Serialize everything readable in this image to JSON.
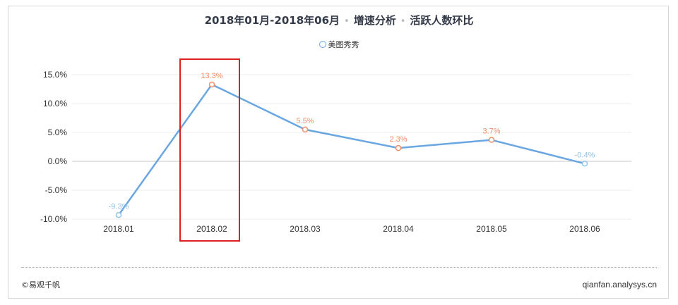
{
  "title": {
    "range": "2018年01月-2018年06月",
    "metric1": "增速分析",
    "metric2": "活跃人数环比",
    "separator": "•"
  },
  "footer": {
    "source": "©易观千帆",
    "website": "qianfan.analysys.cn"
  },
  "colors": {
    "line": "#6aa7e2",
    "positive_label": "#f08e6a",
    "negative_label": "#8ec3e6",
    "highlight_box": "#e0201f"
  },
  "chart_data": {
    "type": "line",
    "categories": [
      "2018.01",
      "2018.02",
      "2018.03",
      "2018.04",
      "2018.05",
      "2018.06"
    ],
    "series": [
      {
        "name": "美图秀秀",
        "values": [
          -9.3,
          13.3,
          5.5,
          2.3,
          3.7,
          -0.4
        ],
        "labels": [
          "-9.3%",
          "13.3%",
          "5.5%",
          "2.3%",
          "3.7%",
          "-0.4%"
        ]
      }
    ],
    "yticks": [
      "15.0%",
      "10.0%",
      "5.0%",
      "0.0%",
      "-5.0%",
      "-10.0%"
    ],
    "ylim": [
      -10,
      15
    ],
    "legend": "top-center",
    "grid": true,
    "highlighted_category": "2018.02"
  }
}
